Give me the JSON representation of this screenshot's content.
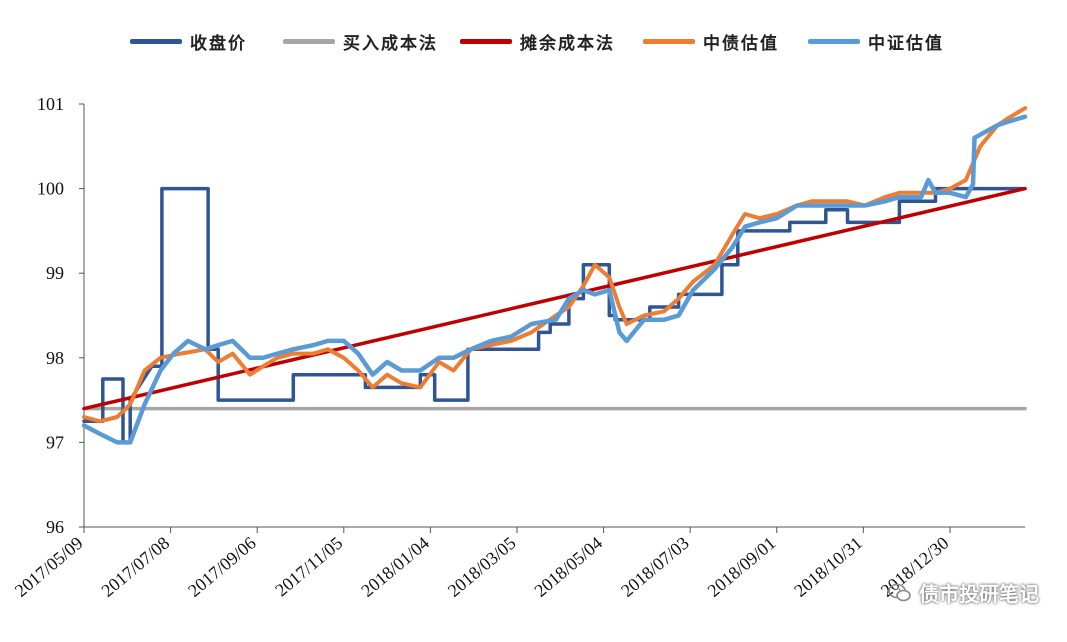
{
  "chart_data": {
    "type": "line",
    "title": "",
    "xlabel": "",
    "ylabel": "",
    "ylim": [
      96,
      101
    ],
    "yticks": [
      96,
      97,
      98,
      99,
      100,
      101
    ],
    "xlim": [
      "2017-05-09",
      "2019-02-20"
    ],
    "xticks": [
      "2017/05/09",
      "2017/07/08",
      "2017/09/06",
      "2017/11/05",
      "2018/01/04",
      "2018/03/05",
      "2018/05/04",
      "2018/07/03",
      "2018/09/01",
      "2018/10/31",
      "2018/12/30"
    ],
    "legend_position": "top",
    "series": [
      {
        "name": "收盘价",
        "color": "#2f5597",
        "step": true,
        "points": [
          [
            "2017-05-09",
            97.25
          ],
          [
            "2017-05-22",
            97.25
          ],
          [
            "2017-05-22",
            97.75
          ],
          [
            "2017-06-05",
            97.75
          ],
          [
            "2017-06-05",
            97.0
          ],
          [
            "2017-06-10",
            97.0
          ],
          [
            "2017-06-10",
            97.5
          ],
          [
            "2017-06-25",
            97.9
          ],
          [
            "2017-07-02",
            97.9
          ],
          [
            "2017-07-02",
            100.0
          ],
          [
            "2017-08-03",
            100.0
          ],
          [
            "2017-08-03",
            98.1
          ],
          [
            "2017-08-10",
            98.1
          ],
          [
            "2017-08-10",
            97.5
          ],
          [
            "2017-10-01",
            97.5
          ],
          [
            "2017-10-01",
            97.8
          ],
          [
            "2017-11-20",
            97.8
          ],
          [
            "2017-11-20",
            97.65
          ],
          [
            "2017-12-28",
            97.65
          ],
          [
            "2017-12-28",
            97.8
          ],
          [
            "2018-01-07",
            97.8
          ],
          [
            "2018-01-07",
            97.5
          ],
          [
            "2018-01-30",
            97.5
          ],
          [
            "2018-01-30",
            98.1
          ],
          [
            "2018-03-20",
            98.1
          ],
          [
            "2018-03-20",
            98.3
          ],
          [
            "2018-03-28",
            98.3
          ],
          [
            "2018-03-28",
            98.4
          ],
          [
            "2018-04-10",
            98.4
          ],
          [
            "2018-04-10",
            98.7
          ],
          [
            "2018-04-20",
            98.7
          ],
          [
            "2018-04-20",
            99.1
          ],
          [
            "2018-05-08",
            99.1
          ],
          [
            "2018-05-08",
            98.5
          ],
          [
            "2018-05-12",
            98.5
          ],
          [
            "2018-05-12",
            98.45
          ],
          [
            "2018-06-05",
            98.45
          ],
          [
            "2018-06-05",
            98.6
          ],
          [
            "2018-06-25",
            98.6
          ],
          [
            "2018-06-25",
            98.75
          ],
          [
            "2018-07-25",
            98.75
          ],
          [
            "2018-07-25",
            99.1
          ],
          [
            "2018-08-05",
            99.1
          ],
          [
            "2018-08-05",
            99.5
          ],
          [
            "2018-09-10",
            99.5
          ],
          [
            "2018-09-10",
            99.6
          ],
          [
            "2018-10-05",
            99.6
          ],
          [
            "2018-10-05",
            99.75
          ],
          [
            "2018-10-20",
            99.75
          ],
          [
            "2018-10-20",
            99.6
          ],
          [
            "2018-11-25",
            99.6
          ],
          [
            "2018-11-25",
            99.85
          ],
          [
            "2018-12-20",
            99.85
          ],
          [
            "2018-12-20",
            100.0
          ],
          [
            "2019-02-20",
            100.0
          ]
        ]
      },
      {
        "name": "买入成本法",
        "color": "#a6a6a6",
        "points": [
          [
            "2017-05-09",
            97.4
          ],
          [
            "2019-02-20",
            97.4
          ]
        ]
      },
      {
        "name": "摊余成本法",
        "color": "#c00000",
        "points": [
          [
            "2017-05-09",
            97.4
          ],
          [
            "2019-02-20",
            100.0
          ]
        ]
      },
      {
        "name": "中债估值",
        "color": "#ed7d31",
        "points": [
          [
            "2017-05-09",
            97.3
          ],
          [
            "2017-05-20",
            97.25
          ],
          [
            "2017-06-01",
            97.3
          ],
          [
            "2017-06-10",
            97.45
          ],
          [
            "2017-06-20",
            97.85
          ],
          [
            "2017-07-01",
            98.0
          ],
          [
            "2017-07-15",
            98.05
          ],
          [
            "2017-08-01",
            98.1
          ],
          [
            "2017-08-10",
            97.95
          ],
          [
            "2017-08-20",
            98.05
          ],
          [
            "2017-09-01",
            97.8
          ],
          [
            "2017-09-10",
            97.9
          ],
          [
            "2017-09-20",
            98.0
          ],
          [
            "2017-10-01",
            98.05
          ],
          [
            "2017-10-15",
            98.05
          ],
          [
            "2017-10-25",
            98.1
          ],
          [
            "2017-11-05",
            98.0
          ],
          [
            "2017-11-15",
            97.85
          ],
          [
            "2017-11-25",
            97.65
          ],
          [
            "2017-12-05",
            97.8
          ],
          [
            "2017-12-15",
            97.7
          ],
          [
            "2017-12-28",
            97.65
          ],
          [
            "2018-01-10",
            97.95
          ],
          [
            "2018-01-20",
            97.85
          ],
          [
            "2018-02-01",
            98.1
          ],
          [
            "2018-02-15",
            98.15
          ],
          [
            "2018-03-01",
            98.2
          ],
          [
            "2018-03-15",
            98.3
          ],
          [
            "2018-04-01",
            98.5
          ],
          [
            "2018-04-10",
            98.6
          ],
          [
            "2018-04-20",
            98.85
          ],
          [
            "2018-04-28",
            99.1
          ],
          [
            "2018-05-08",
            98.95
          ],
          [
            "2018-05-15",
            98.6
          ],
          [
            "2018-05-20",
            98.4
          ],
          [
            "2018-06-01",
            98.5
          ],
          [
            "2018-06-15",
            98.55
          ],
          [
            "2018-06-25",
            98.7
          ],
          [
            "2018-07-05",
            98.9
          ],
          [
            "2018-07-20",
            99.1
          ],
          [
            "2018-08-01",
            99.45
          ],
          [
            "2018-08-10",
            99.7
          ],
          [
            "2018-08-20",
            99.65
          ],
          [
            "2018-09-01",
            99.7
          ],
          [
            "2018-09-15",
            99.8
          ],
          [
            "2018-09-25",
            99.85
          ],
          [
            "2018-10-10",
            99.85
          ],
          [
            "2018-10-20",
            99.85
          ],
          [
            "2018-11-01",
            99.8
          ],
          [
            "2018-11-15",
            99.9
          ],
          [
            "2018-11-25",
            99.95
          ],
          [
            "2018-12-10",
            99.95
          ],
          [
            "2018-12-20",
            99.95
          ],
          [
            "2018-12-30",
            100.0
          ],
          [
            "2019-01-10",
            100.1
          ],
          [
            "2019-01-20",
            100.5
          ],
          [
            "2019-02-01",
            100.75
          ],
          [
            "2019-02-10",
            100.85
          ],
          [
            "2019-02-15",
            100.9
          ],
          [
            "2019-02-20",
            100.95
          ]
        ]
      },
      {
        "name": "中证估值",
        "color": "#5b9bd5",
        "points": [
          [
            "2017-05-09",
            97.2
          ],
          [
            "2017-05-20",
            97.1
          ],
          [
            "2017-06-01",
            97.0
          ],
          [
            "2017-06-10",
            97.0
          ],
          [
            "2017-06-20",
            97.45
          ],
          [
            "2017-07-01",
            97.85
          ],
          [
            "2017-07-10",
            98.05
          ],
          [
            "2017-07-20",
            98.2
          ],
          [
            "2017-08-01",
            98.1
          ],
          [
            "2017-08-10",
            98.15
          ],
          [
            "2017-08-20",
            98.2
          ],
          [
            "2017-09-01",
            98.0
          ],
          [
            "2017-09-10",
            98.0
          ],
          [
            "2017-09-20",
            98.05
          ],
          [
            "2017-10-01",
            98.1
          ],
          [
            "2017-10-15",
            98.15
          ],
          [
            "2017-10-25",
            98.2
          ],
          [
            "2017-11-05",
            98.2
          ],
          [
            "2017-11-15",
            98.05
          ],
          [
            "2017-11-25",
            97.8
          ],
          [
            "2017-12-05",
            97.95
          ],
          [
            "2017-12-15",
            97.85
          ],
          [
            "2017-12-28",
            97.85
          ],
          [
            "2018-01-10",
            98.0
          ],
          [
            "2018-01-20",
            98.0
          ],
          [
            "2018-02-01",
            98.1
          ],
          [
            "2018-02-15",
            98.2
          ],
          [
            "2018-03-01",
            98.25
          ],
          [
            "2018-03-15",
            98.4
          ],
          [
            "2018-04-01",
            98.45
          ],
          [
            "2018-04-10",
            98.7
          ],
          [
            "2018-04-20",
            98.8
          ],
          [
            "2018-04-28",
            98.75
          ],
          [
            "2018-05-08",
            98.8
          ],
          [
            "2018-05-15",
            98.3
          ],
          [
            "2018-05-20",
            98.2
          ],
          [
            "2018-06-01",
            98.45
          ],
          [
            "2018-06-15",
            98.45
          ],
          [
            "2018-06-25",
            98.5
          ],
          [
            "2018-07-05",
            98.8
          ],
          [
            "2018-07-20",
            99.05
          ],
          [
            "2018-08-01",
            99.3
          ],
          [
            "2018-08-10",
            99.55
          ],
          [
            "2018-08-20",
            99.6
          ],
          [
            "2018-09-01",
            99.65
          ],
          [
            "2018-09-15",
            99.8
          ],
          [
            "2018-09-25",
            99.8
          ],
          [
            "2018-10-10",
            99.8
          ],
          [
            "2018-10-20",
            99.8
          ],
          [
            "2018-11-01",
            99.8
          ],
          [
            "2018-11-15",
            99.85
          ],
          [
            "2018-11-25",
            99.9
          ],
          [
            "2018-12-10",
            99.9
          ],
          [
            "2018-12-15",
            100.1
          ],
          [
            "2018-12-20",
            99.95
          ],
          [
            "2018-12-30",
            99.95
          ],
          [
            "2019-01-10",
            99.9
          ],
          [
            "2019-01-15",
            100.05
          ],
          [
            "2019-01-16",
            100.6
          ],
          [
            "2019-02-01",
            100.75
          ],
          [
            "2019-02-10",
            100.8
          ],
          [
            "2019-02-20",
            100.85
          ]
        ]
      }
    ]
  },
  "watermark": {
    "text": "债市投研笔记",
    "icon": "wechat-icon"
  }
}
